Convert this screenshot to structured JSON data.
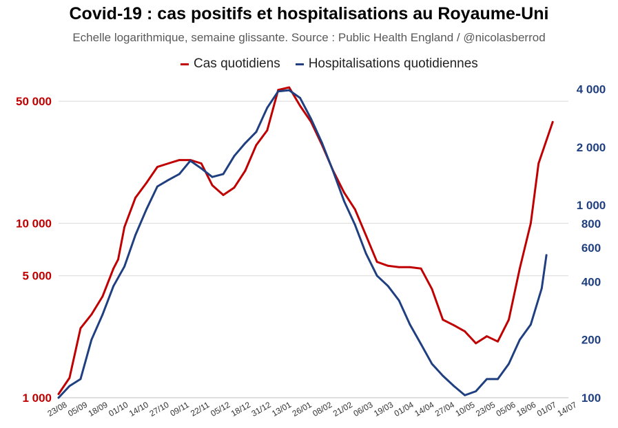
{
  "header": {
    "title": "Covid-19 : cas positifs et hospitalisations au Royaume-Uni",
    "subtitle": "Echelle logarithmique, semaine glissante. Source : Public Health England / @nicolasberrod"
  },
  "colors": {
    "cases": "#c00000",
    "hospital": "#1f3f80",
    "grid": "#d9d9d9"
  },
  "chart_data": {
    "type": "line",
    "title": "Covid-19 : cas positifs et hospitalisations au Royaume-Uni",
    "subtitle": "Echelle logarithmique, semaine glissante. Source : Public Health England / @nicolasberrod",
    "scale": "log",
    "x_tick_labels": [
      "23/08",
      "05/09",
      "18/09",
      "01/10",
      "14/10",
      "27/10",
      "09/11",
      "22/11",
      "05/12",
      "18/12",
      "31/12",
      "13/01",
      "26/01",
      "08/02",
      "21/02",
      "06/03",
      "19/03",
      "01/04",
      "14/04",
      "27/04",
      "10/05",
      "23/05",
      "05/06",
      "18/06",
      "01/07",
      "14/07"
    ],
    "left_axis": {
      "ylim": [
        1000,
        70000
      ],
      "ticks": [
        1000,
        5000,
        10000,
        50000
      ],
      "tick_labels": [
        "1 000",
        "5 000",
        "10 000",
        "50 000"
      ]
    },
    "right_axis": {
      "ylim": [
        100,
        4700
      ],
      "ticks": [
        100,
        200,
        400,
        600,
        800,
        1000,
        2000,
        4000
      ],
      "tick_labels": [
        "100",
        "200",
        "400",
        "600",
        "800",
        "1 000",
        "2 000",
        "4 000"
      ]
    },
    "legend_position": "top",
    "series": [
      {
        "name": "Cas quotidiens",
        "axis": "left",
        "x": [
          0,
          7,
          14,
          21,
          28,
          35,
          38,
          42,
          49,
          56,
          63,
          70,
          77,
          84,
          91,
          98,
          105,
          112,
          119,
          126,
          133,
          140,
          147,
          154,
          161,
          168,
          175,
          182,
          189,
          196,
          203,
          210,
          217,
          224,
          231,
          238,
          245,
          252,
          259,
          266,
          273,
          280,
          287,
          294,
          301,
          306,
          315
        ],
        "values": [
          1050,
          1300,
          2500,
          3000,
          3800,
          5500,
          6200,
          9500,
          14000,
          17000,
          21000,
          22000,
          23000,
          23000,
          22000,
          16500,
          14500,
          16000,
          20000,
          28000,
          34000,
          58000,
          60000,
          47000,
          38000,
          28000,
          20000,
          15000,
          12000,
          8500,
          6000,
          5700,
          5600,
          5600,
          5500,
          4200,
          2800,
          2600,
          2400,
          2050,
          2250,
          2100,
          2800,
          5500,
          10000,
          22000,
          38000
        ]
      },
      {
        "name": "Hospitalisations quotidiennes",
        "axis": "right",
        "x": [
          0,
          7,
          14,
          21,
          28,
          35,
          42,
          49,
          56,
          63,
          70,
          77,
          84,
          91,
          98,
          105,
          112,
          119,
          126,
          133,
          140,
          147,
          154,
          161,
          168,
          175,
          182,
          189,
          196,
          203,
          210,
          217,
          224,
          231,
          238,
          245,
          252,
          259,
          266,
          273,
          280,
          287,
          294,
          301,
          308,
          311
        ],
        "values": [
          100,
          115,
          125,
          200,
          270,
          380,
          480,
          700,
          950,
          1250,
          1350,
          1450,
          1700,
          1550,
          1400,
          1450,
          1800,
          2100,
          2400,
          3200,
          3900,
          3950,
          3600,
          2800,
          2100,
          1500,
          1050,
          790,
          560,
          430,
          380,
          320,
          240,
          190,
          150,
          130,
          115,
          103,
          108,
          125,
          125,
          150,
          200,
          240,
          370,
          550
        ]
      }
    ]
  }
}
